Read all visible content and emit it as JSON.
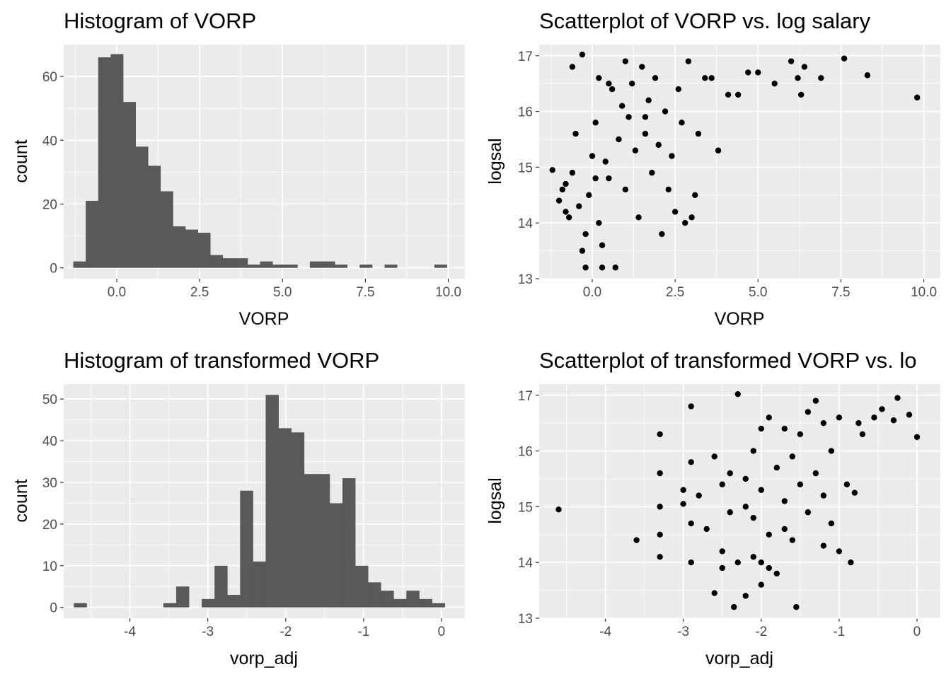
{
  "colors": {
    "panel_bg": "#ebebeb",
    "bar_fill": "#595959",
    "point": "#000000",
    "grid": "#ffffff"
  },
  "chart_data": [
    {
      "id": "hist_vorp",
      "type": "bar",
      "title": "Histogram of VORP",
      "xlabel": "VORP",
      "ylabel": "count",
      "xlim": [
        -1.6,
        10.5
      ],
      "ylim": [
        -3.4,
        70
      ],
      "xticks": [
        0,
        2.5,
        5,
        7.5,
        10
      ],
      "xtick_labels": [
        "0.0",
        "2.5",
        "5.0",
        "7.5",
        "10.0"
      ],
      "yticks": [
        0,
        20,
        40,
        60
      ],
      "ytick_labels": [
        "0",
        "20",
        "40",
        "60"
      ],
      "bin_start": -1.31,
      "bin_width": 0.3755,
      "values": [
        2,
        21,
        66,
        67,
        52,
        38,
        32,
        24,
        13,
        12,
        11,
        4,
        3,
        3,
        1,
        2,
        1,
        1,
        0,
        2,
        2,
        1,
        0,
        1,
        0,
        1,
        0,
        0,
        0,
        1
      ]
    },
    {
      "id": "scatter_vorp",
      "type": "scatter",
      "title": "Scatterplot of VORP vs. log salary",
      "xlabel": "VORP",
      "ylabel": "logsal",
      "xlim": [
        -1.6,
        10.5
      ],
      "ylim": [
        13.0,
        17.2
      ],
      "xticks": [
        0,
        2.5,
        5,
        7.5,
        10
      ],
      "xtick_labels": [
        "0.0",
        "2.5",
        "5.0",
        "7.5",
        "10.0"
      ],
      "yticks": [
        13,
        14,
        15,
        16,
        17
      ],
      "ytick_labels": [
        "13",
        "14",
        "15",
        "16",
        "17"
      ],
      "points": [
        [
          -1.2,
          14.95
        ],
        [
          -1.0,
          14.4
        ],
        [
          -0.9,
          14.6
        ],
        [
          -0.8,
          14.2
        ],
        [
          -0.8,
          14.7
        ],
        [
          -0.7,
          14.1
        ],
        [
          -0.6,
          14.9
        ],
        [
          -0.5,
          15.6
        ],
        [
          -0.4,
          14.3
        ],
        [
          -0.3,
          13.5
        ],
        [
          -0.2,
          13.8
        ],
        [
          -0.1,
          14.5
        ],
        [
          0.0,
          15.2
        ],
        [
          0.1,
          15.8
        ],
        [
          0.2,
          14.0
        ],
        [
          0.3,
          13.6
        ],
        [
          0.4,
          15.1
        ],
        [
          0.5,
          14.8
        ],
        [
          0.6,
          16.4
        ],
        [
          0.7,
          13.2
        ],
        [
          0.8,
          15.5
        ],
        [
          0.9,
          16.1
        ],
        [
          1.0,
          14.6
        ],
        [
          1.1,
          15.9
        ],
        [
          1.2,
          16.5
        ],
        [
          1.3,
          15.3
        ],
        [
          1.4,
          14.1
        ],
        [
          1.5,
          16.8
        ],
        [
          1.6,
          15.6
        ],
        [
          1.7,
          16.2
        ],
        [
          1.8,
          14.9
        ],
        [
          1.9,
          16.6
        ],
        [
          2.0,
          15.4
        ],
        [
          2.1,
          13.8
        ],
        [
          2.2,
          16.0
        ],
        [
          2.3,
          14.6
        ],
        [
          2.4,
          15.2
        ],
        [
          2.5,
          14.2
        ],
        [
          2.6,
          16.4
        ],
        [
          2.7,
          15.8
        ],
        [
          2.8,
          14.0
        ],
        [
          2.9,
          16.9
        ],
        [
          3.0,
          14.1
        ],
        [
          3.1,
          14.5
        ],
        [
          3.2,
          15.6
        ],
        [
          3.4,
          16.6
        ],
        [
          3.6,
          16.6
        ],
        [
          3.8,
          15.3
        ],
        [
          4.1,
          16.3
        ],
        [
          4.4,
          16.3
        ],
        [
          4.7,
          16.7
        ],
        [
          5.0,
          16.7
        ],
        [
          5.5,
          16.5
        ],
        [
          6.0,
          16.9
        ],
        [
          6.2,
          16.6
        ],
        [
          6.3,
          16.3
        ],
        [
          6.4,
          16.8
        ],
        [
          6.9,
          16.6
        ],
        [
          7.6,
          16.95
        ],
        [
          8.3,
          16.65
        ],
        [
          9.8,
          16.25
        ],
        [
          -0.3,
          17.02
        ],
        [
          0.2,
          16.6
        ],
        [
          -0.6,
          16.8
        ],
        [
          0.5,
          16.5
        ],
        [
          1.0,
          16.9
        ],
        [
          1.6,
          15.9
        ],
        [
          0.3,
          13.2
        ],
        [
          -0.2,
          13.2
        ],
        [
          0.1,
          14.8
        ]
      ]
    },
    {
      "id": "hist_adj",
      "type": "bar",
      "title": "Histogram of transformed VORP",
      "xlabel": "vorp_adj",
      "ylabel": "count",
      "xlim": [
        -4.85,
        0.3
      ],
      "ylim": [
        -2.6,
        53.6
      ],
      "xticks": [
        -4,
        -3,
        -2,
        -1,
        0
      ],
      "xtick_labels": [
        "-4",
        "-3",
        "-2",
        "-1",
        "0"
      ],
      "yticks": [
        0,
        10,
        20,
        30,
        40,
        50
      ],
      "ytick_labels": [
        "0",
        "10",
        "20",
        "30",
        "40",
        "50"
      ],
      "bin_start": -4.72,
      "bin_width": 0.1642,
      "values": [
        1,
        0,
        0,
        0,
        0,
        0,
        0,
        1,
        5,
        0,
        2,
        10,
        3,
        28,
        11,
        51,
        43,
        42,
        32,
        32,
        25,
        31,
        10,
        6,
        4,
        2,
        4,
        2,
        1
      ]
    },
    {
      "id": "scatter_adj",
      "type": "scatter",
      "title": "Scatterplot of transformed VORP vs. lo",
      "xlabel": "vorp_adj",
      "ylabel": "logsal",
      "xlim": [
        -4.85,
        0.3
      ],
      "ylim": [
        13.0,
        17.2
      ],
      "xticks": [
        -4,
        -3,
        -2,
        -1,
        0
      ],
      "xtick_labels": [
        "-4",
        "-3",
        "-2",
        "-1",
        "0"
      ],
      "yticks": [
        13,
        14,
        15,
        16,
        17
      ],
      "ytick_labels": [
        "13",
        "14",
        "15",
        "16",
        "17"
      ],
      "points": [
        [
          -4.6,
          14.95
        ],
        [
          -3.6,
          14.4
        ],
        [
          -3.3,
          16.3
        ],
        [
          -3.3,
          15.6
        ],
        [
          -3.3,
          15.0
        ],
        [
          -3.3,
          14.5
        ],
        [
          -3.3,
          14.1
        ],
        [
          -3.0,
          15.3
        ],
        [
          -3.0,
          15.05
        ],
        [
          -2.9,
          16.8
        ],
        [
          -2.9,
          15.8
        ],
        [
          -2.9,
          14.7
        ],
        [
          -2.9,
          14.0
        ],
        [
          -2.8,
          15.2
        ],
        [
          -2.7,
          14.6
        ],
        [
          -2.6,
          13.45
        ],
        [
          -2.6,
          15.9
        ],
        [
          -2.5,
          15.4
        ],
        [
          -2.5,
          14.2
        ],
        [
          -2.4,
          15.6
        ],
        [
          -2.35,
          13.2
        ],
        [
          -2.3,
          17.02
        ],
        [
          -2.3,
          14.0
        ],
        [
          -2.2,
          15.0
        ],
        [
          -2.2,
          13.4
        ],
        [
          -2.1,
          16.0
        ],
        [
          -2.1,
          14.8
        ],
        [
          -2.0,
          16.4
        ],
        [
          -2.0,
          15.3
        ],
        [
          -2.0,
          14.0
        ],
        [
          -1.9,
          16.6
        ],
        [
          -1.9,
          14.5
        ],
        [
          -1.8,
          15.7
        ],
        [
          -1.8,
          13.8
        ],
        [
          -1.7,
          16.4
        ],
        [
          -1.7,
          15.1
        ],
        [
          -1.6,
          15.9
        ],
        [
          -1.6,
          14.4
        ],
        [
          -1.55,
          13.2
        ],
        [
          -1.5,
          16.3
        ],
        [
          -1.5,
          15.4
        ],
        [
          -1.4,
          16.7
        ],
        [
          -1.4,
          14.9
        ],
        [
          -1.3,
          16.9
        ],
        [
          -1.3,
          15.6
        ],
        [
          -1.2,
          16.5
        ],
        [
          -1.2,
          14.3
        ],
        [
          -1.1,
          16.0
        ],
        [
          -1.1,
          14.7
        ],
        [
          -1.0,
          16.6
        ],
        [
          -1.0,
          14.2
        ],
        [
          -0.9,
          15.4
        ],
        [
          -0.85,
          14.0
        ],
        [
          -0.8,
          15.25
        ],
        [
          -0.75,
          16.5
        ],
        [
          -0.7,
          16.3
        ],
        [
          -0.55,
          16.6
        ],
        [
          -0.45,
          16.75
        ],
        [
          -0.3,
          16.55
        ],
        [
          -0.25,
          16.95
        ],
        [
          -0.1,
          16.65
        ],
        [
          0.0,
          16.25
        ],
        [
          -2.4,
          14.9
        ],
        [
          -2.1,
          14.1
        ],
        [
          -1.9,
          13.9
        ],
        [
          -2.2,
          15.5
        ],
        [
          -2.5,
          13.9
        ],
        [
          -1.7,
          14.6
        ],
        [
          -1.2,
          15.2
        ],
        [
          -2.0,
          13.6
        ]
      ]
    }
  ]
}
